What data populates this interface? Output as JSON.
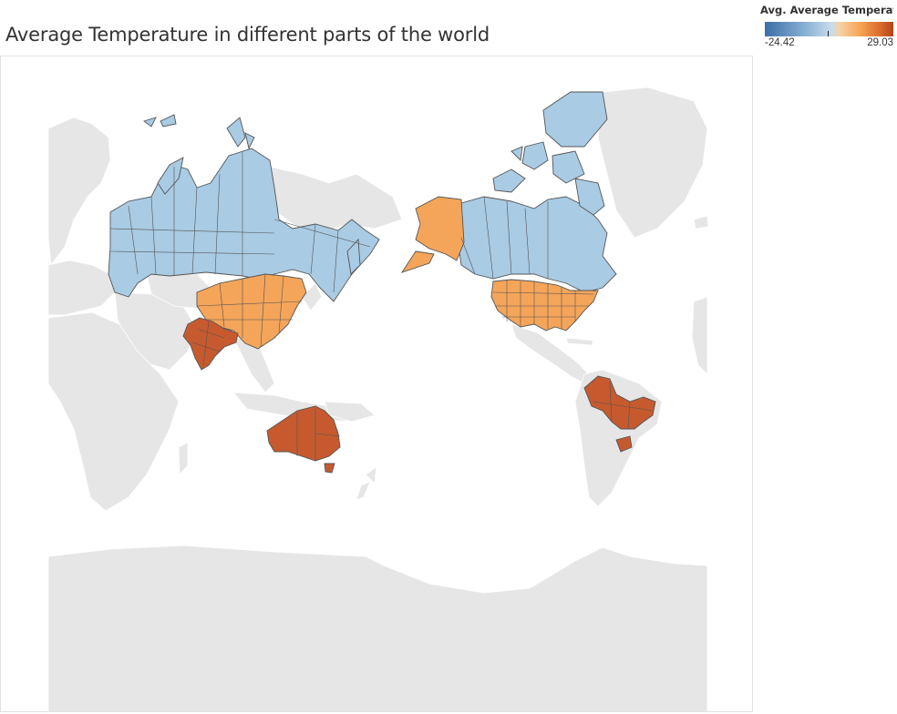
{
  "title": "Average Temperature in different parts of the world",
  "legend": {
    "title": "Avg. Average Temperatu..",
    "min_label": "-24.42",
    "max_label": "29.03",
    "min": -24.42,
    "max": 29.03
  },
  "colors": {
    "cold": "#a9cbe4",
    "mild": "#f4a55a",
    "hot": "#c65a2e",
    "land": "#e6e6e6",
    "border": "#555555"
  },
  "regions": [
    {
      "name": "Russia",
      "avg_temperature_band": "cold"
    },
    {
      "name": "Canada",
      "avg_temperature_band": "cold"
    },
    {
      "name": "United States",
      "avg_temperature_band": "mild"
    },
    {
      "name": "China",
      "avg_temperature_band": "mild"
    },
    {
      "name": "India",
      "avg_temperature_band": "hot"
    },
    {
      "name": "Australia",
      "avg_temperature_band": "hot"
    },
    {
      "name": "Brazil",
      "avg_temperature_band": "hot"
    }
  ]
}
